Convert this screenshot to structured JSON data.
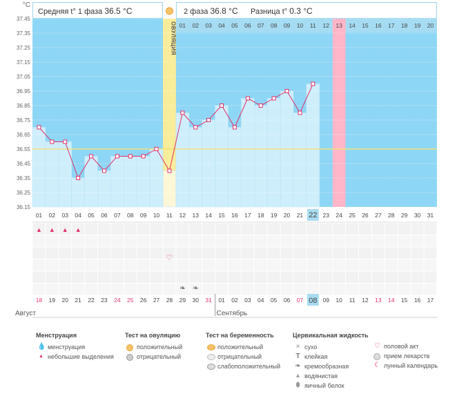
{
  "chart_data": {
    "type": "line",
    "y_unit": "°C",
    "ylim": [
      36.15,
      37.45
    ],
    "y_ticks": [
      "37.45",
      "37.35",
      "37.25",
      "37.15",
      "37.05",
      "36.95",
      "36.85",
      "36.75",
      "36.65",
      "36.55",
      "36.45",
      "36.35",
      "36.25",
      "36.15"
    ],
    "header": {
      "phase1_label": "Средняя t° 1 фаза",
      "phase1_value": "36.5 °C",
      "phase2_label": "2 фаза",
      "phase2_value": "36.8 °C",
      "diff_label": "Разница t°",
      "diff_value": "0.3 °C"
    },
    "cycle_days": [
      "01",
      "02",
      "03",
      "04",
      "05",
      "06",
      "07",
      "08",
      "09",
      "10",
      "11",
      "12",
      "13",
      "14",
      "15",
      "16",
      "17",
      "18",
      "19",
      "20",
      "21",
      "22",
      "23",
      "24",
      "25",
      "26",
      "27",
      "28",
      "29",
      "30",
      "31"
    ],
    "current_cycle_day": "22",
    "ovulation_label": "ОВУЛЯЦИЯ",
    "ovulation_day": "11",
    "phase2_day_numbers": [
      "01",
      "02",
      "03",
      "04",
      "05",
      "06",
      "07",
      "08",
      "09",
      "10",
      "11",
      "12",
      "13",
      "14",
      "15",
      "16",
      "17",
      "18",
      "19",
      "20"
    ],
    "highlighted_phase2_day": "13",
    "coverline": 36.55,
    "temperatures": [
      36.7,
      36.6,
      36.6,
      36.35,
      36.5,
      36.4,
      36.5,
      36.5,
      36.5,
      36.55,
      36.4,
      36.8,
      36.7,
      36.75,
      36.85,
      36.7,
      36.9,
      36.85,
      36.9,
      36.95,
      36.8,
      37.0
    ],
    "calendar_dates": [
      "18",
      "19",
      "20",
      "21",
      "22",
      "23",
      "24",
      "25",
      "26",
      "27",
      "28",
      "29",
      "30",
      "31",
      "01",
      "02",
      "03",
      "04",
      "05",
      "06",
      "07",
      "08",
      "09",
      "10",
      "11",
      "12",
      "13",
      "14",
      "15",
      "16",
      "17"
    ],
    "weekend_dates_idx": [
      0,
      6,
      7,
      13,
      20,
      26,
      27
    ],
    "today_idx": 21,
    "months": [
      "Август",
      "Сентябрь"
    ],
    "month_break_idx": 14,
    "menstruation_days_idx": [
      0,
      1,
      2,
      3
    ],
    "intercourse_days_idx": [
      10
    ],
    "creamy_mucus_days_idx": [
      11,
      12
    ],
    "colors": {
      "sky": "#8ed6f5",
      "bar": "#cfeefc",
      "line": "#e0306a",
      "ovulation": "#f9ec9a",
      "highlight": "#ffb6c8",
      "coverline": "#f3e27a",
      "today": "#a9dcf1"
    }
  },
  "legend": {
    "menstruation": {
      "title": "Менструация",
      "items": [
        "менструация",
        "небольшие выделения"
      ]
    },
    "ovulation_test": {
      "title": "Тест на овуляцию",
      "items": [
        "положительный",
        "отрицательный"
      ]
    },
    "pregnancy_test": {
      "title": "Тест на беременность",
      "items": [
        "положительный",
        "отрицательный",
        "слабоположительный"
      ]
    },
    "cervical_fluid": {
      "title": "Цервикальная жидкость",
      "items": [
        "сухо",
        "клейкая",
        "кремообразная",
        "водянистая",
        "яичный белок"
      ]
    },
    "other": {
      "items": [
        "половой акт",
        "прием лекарств",
        "лунный календарь"
      ]
    }
  }
}
